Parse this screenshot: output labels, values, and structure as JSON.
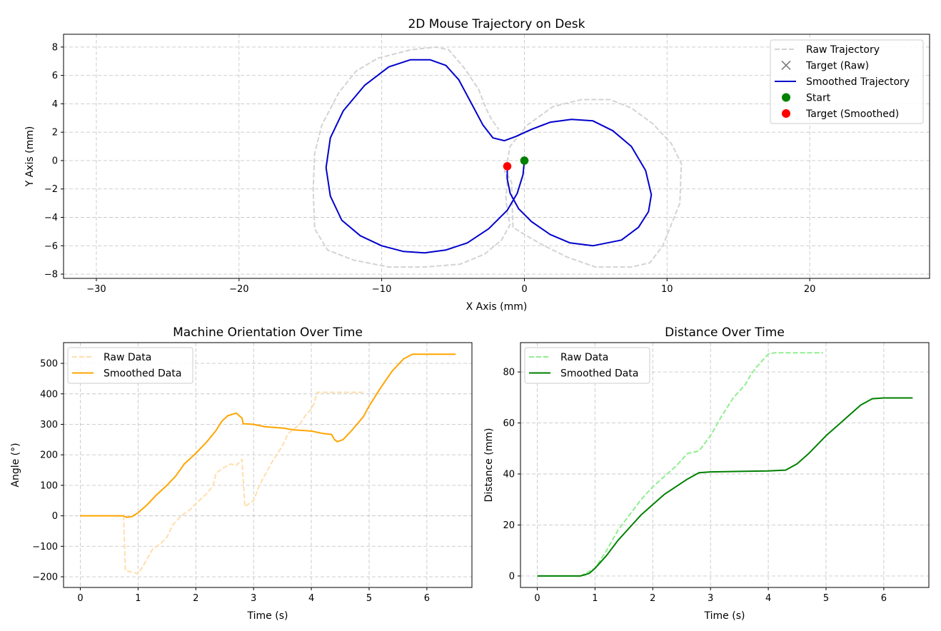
{
  "chart_data": [
    {
      "id": "trajectory",
      "type": "line",
      "title": "2D Mouse Trajectory on Desk",
      "xlabel": "X Axis (mm)",
      "ylabel": "Y Axis (mm)",
      "xlim": [
        -32.3,
        28.4
      ],
      "ylim": [
        -8.3,
        8.9
      ],
      "xticks": [
        -30,
        -20,
        -10,
        0,
        10,
        20
      ],
      "yticks": [
        -8,
        -6,
        -4,
        -2,
        0,
        2,
        4,
        6,
        8
      ],
      "grid": true,
      "legend_position": "top-right",
      "legend": [
        "Raw Trajectory",
        "Target (Raw)",
        "Smoothed Trajectory",
        "Start",
        "Target (Smoothed)"
      ],
      "series": [
        {
          "name": "Raw Trajectory",
          "color": "#d3d3d3",
          "style": "dashed",
          "points": [
            [
              -1.3,
              -0.6
            ],
            [
              -1.0,
              1.0
            ],
            [
              0.2,
              2.5
            ],
            [
              2.0,
              3.8
            ],
            [
              4.0,
              4.3
            ],
            [
              6.0,
              4.3
            ],
            [
              7.5,
              3.7
            ],
            [
              9.0,
              2.6
            ],
            [
              10.3,
              1.2
            ],
            [
              11.0,
              -0.2
            ],
            [
              10.9,
              -3.0
            ],
            [
              10.3,
              -4.5
            ],
            [
              9.7,
              -6.0
            ],
            [
              8.8,
              -7.2
            ],
            [
              7.5,
              -7.5
            ],
            [
              5.0,
              -7.5
            ],
            [
              3.0,
              -6.8
            ],
            [
              1.2,
              -5.9
            ],
            [
              0.0,
              -5.2
            ],
            [
              -0.8,
              -4.7
            ],
            [
              -0.9,
              -1.5
            ],
            [
              -1.2,
              -1.0
            ],
            [
              -1.3,
              -1.0
            ],
            [
              -1.4,
              -0.7
            ],
            [
              -1.3,
              -0.8
            ],
            [
              -1.2,
              -1.8
            ],
            [
              -1.3,
              -2.5
            ],
            [
              -1.2,
              -3.7
            ],
            [
              -1.0,
              -4.5
            ],
            [
              -1.6,
              -5.6
            ],
            [
              -2.8,
              -6.6
            ],
            [
              -4.5,
              -7.3
            ],
            [
              -7.0,
              -7.5
            ],
            [
              -9.5,
              -7.5
            ],
            [
              -12.0,
              -7.0
            ],
            [
              -13.8,
              -6.3
            ],
            [
              -14.7,
              -4.8
            ],
            [
              -14.8,
              -2.0
            ],
            [
              -14.7,
              0.5
            ],
            [
              -14.2,
              2.5
            ],
            [
              -13.0,
              4.8
            ],
            [
              -11.8,
              6.3
            ],
            [
              -10.3,
              7.2
            ],
            [
              -8.0,
              7.8
            ],
            [
              -6.2,
              8.0
            ],
            [
              -5.3,
              7.8
            ],
            [
              -4.2,
              6.5
            ],
            [
              -3.2,
              5.0
            ],
            [
              -2.7,
              3.7
            ],
            [
              -2.3,
              2.9
            ],
            [
              -1.8,
              2.2
            ]
          ]
        },
        {
          "name": "Smoothed Trajectory",
          "color": "#0000cd",
          "style": "solid",
          "points": [
            [
              0.0,
              0.0
            ],
            [
              -0.1,
              -1.0
            ],
            [
              -0.5,
              -2.3
            ],
            [
              -1.2,
              -3.5
            ],
            [
              -2.5,
              -4.8
            ],
            [
              -4.0,
              -5.8
            ],
            [
              -5.5,
              -6.3
            ],
            [
              -7.0,
              -6.5
            ],
            [
              -8.5,
              -6.4
            ],
            [
              -10.0,
              -6.0
            ],
            [
              -11.5,
              -5.3
            ],
            [
              -12.8,
              -4.2
            ],
            [
              -13.6,
              -2.5
            ],
            [
              -13.9,
              -0.5
            ],
            [
              -13.6,
              1.6
            ],
            [
              -12.7,
              3.5
            ],
            [
              -11.2,
              5.3
            ],
            [
              -9.5,
              6.6
            ],
            [
              -8.0,
              7.1
            ],
            [
              -6.6,
              7.1
            ],
            [
              -5.5,
              6.7
            ],
            [
              -4.6,
              5.7
            ],
            [
              -3.8,
              4.2
            ],
            [
              -2.9,
              2.5
            ],
            [
              -2.2,
              1.6
            ],
            [
              -1.4,
              1.4
            ],
            [
              -0.6,
              1.7
            ],
            [
              0.5,
              2.2
            ],
            [
              1.8,
              2.7
            ],
            [
              3.3,
              2.9
            ],
            [
              4.8,
              2.8
            ],
            [
              6.2,
              2.1
            ],
            [
              7.5,
              1.0
            ],
            [
              8.5,
              -0.7
            ],
            [
              8.9,
              -2.4
            ],
            [
              8.7,
              -3.6
            ],
            [
              8.0,
              -4.7
            ],
            [
              6.8,
              -5.6
            ],
            [
              4.8,
              -6.0
            ],
            [
              3.2,
              -5.8
            ],
            [
              1.8,
              -5.2
            ],
            [
              0.5,
              -4.3
            ],
            [
              -0.4,
              -3.4
            ],
            [
              -1.0,
              -2.3
            ],
            [
              -1.2,
              -1.3
            ],
            [
              -1.2,
              -0.4
            ]
          ]
        },
        {
          "name": "Target (Raw)",
          "color": "#808080",
          "marker": "x",
          "points": []
        },
        {
          "name": "Start",
          "color": "#008000",
          "marker": "circle",
          "points": [
            [
              0.0,
              0.0
            ]
          ]
        },
        {
          "name": "Target (Smoothed)",
          "color": "#ff0000",
          "marker": "circle",
          "points": [
            [
              -1.2,
              -0.4
            ]
          ]
        }
      ]
    },
    {
      "id": "orientation",
      "type": "line",
      "title": "Machine Orientation Over Time",
      "xlabel": "Time (s)",
      "ylabel": "Angle (°)",
      "xlim": [
        -0.29,
        6.78
      ],
      "ylim": [
        -235,
        568
      ],
      "xticks": [
        0,
        1,
        2,
        3,
        4,
        5,
        6
      ],
      "yticks": [
        -200,
        -100,
        0,
        100,
        200,
        300,
        400,
        500
      ],
      "grid": true,
      "legend_position": "top-left",
      "legend": [
        "Raw Data",
        "Smoothed Data"
      ],
      "series": [
        {
          "name": "Raw Data",
          "color": "#ffdead",
          "style": "dashed",
          "points": [
            [
              0,
              0
            ],
            [
              0.75,
              0
            ],
            [
              0.78,
              -180
            ],
            [
              0.9,
              -185
            ],
            [
              1.0,
              -190
            ],
            [
              1.1,
              -160
            ],
            [
              1.25,
              -110
            ],
            [
              1.4,
              -90
            ],
            [
              1.5,
              -70
            ],
            [
              1.6,
              -30
            ],
            [
              1.75,
              0
            ],
            [
              1.9,
              20
            ],
            [
              2.0,
              40
            ],
            [
              2.2,
              75
            ],
            [
              2.3,
              100
            ],
            [
              2.35,
              140
            ],
            [
              2.5,
              160
            ],
            [
              2.6,
              170
            ],
            [
              2.7,
              165
            ],
            [
              2.8,
              185
            ],
            [
              2.85,
              30
            ],
            [
              3.0,
              50
            ],
            [
              3.1,
              100
            ],
            [
              3.3,
              170
            ],
            [
              3.5,
              230
            ],
            [
              3.6,
              270
            ],
            [
              3.8,
              300
            ],
            [
              3.9,
              330
            ],
            [
              4.0,
              350
            ],
            [
              4.05,
              370
            ],
            [
              4.1,
              405
            ],
            [
              4.4,
              405
            ],
            [
              4.9,
              405
            ]
          ]
        },
        {
          "name": "Smoothed Data",
          "color": "#ffa500",
          "style": "solid",
          "points": [
            [
              0,
              0
            ],
            [
              0.75,
              0
            ],
            [
              0.8,
              -5
            ],
            [
              0.9,
              -2
            ],
            [
              1.0,
              10
            ],
            [
              1.15,
              35
            ],
            [
              1.3,
              65
            ],
            [
              1.5,
              100
            ],
            [
              1.65,
              130
            ],
            [
              1.8,
              170
            ],
            [
              2.0,
              205
            ],
            [
              2.2,
              245
            ],
            [
              2.35,
              280
            ],
            [
              2.45,
              310
            ],
            [
              2.55,
              328
            ],
            [
              2.7,
              337
            ],
            [
              2.8,
              320
            ],
            [
              2.82,
              302
            ],
            [
              3.0,
              300
            ],
            [
              3.2,
              292
            ],
            [
              3.5,
              288
            ],
            [
              3.7,
              282
            ],
            [
              4.0,
              278
            ],
            [
              4.2,
              270
            ],
            [
              4.35,
              267
            ],
            [
              4.4,
              250
            ],
            [
              4.45,
              243
            ],
            [
              4.55,
              250
            ],
            [
              4.7,
              280
            ],
            [
              4.9,
              325
            ],
            [
              5.0,
              360
            ],
            [
              5.2,
              420
            ],
            [
              5.4,
              475
            ],
            [
              5.6,
              515
            ],
            [
              5.75,
              530
            ],
            [
              6.0,
              530
            ],
            [
              6.5,
              530
            ]
          ]
        }
      ]
    },
    {
      "id": "distance",
      "type": "line",
      "title": "Distance Over Time",
      "xlabel": "Time (s)",
      "ylabel": "Distance (mm)",
      "xlim": [
        -0.29,
        6.78
      ],
      "ylim": [
        -4.5,
        91.5
      ],
      "xticks": [
        0,
        1,
        2,
        3,
        4,
        5,
        6
      ],
      "yticks": [
        0,
        20,
        40,
        60,
        80
      ],
      "grid": true,
      "legend_position": "top-left",
      "legend": [
        "Raw Data",
        "Smoothed Data"
      ],
      "series": [
        {
          "name": "Raw Data",
          "color": "#90ee90",
          "style": "dashed",
          "points": [
            [
              0,
              0
            ],
            [
              0.75,
              0
            ],
            [
              1.0,
              3
            ],
            [
              1.2,
              10
            ],
            [
              1.4,
              18
            ],
            [
              1.6,
              24
            ],
            [
              1.8,
              30
            ],
            [
              2.0,
              35
            ],
            [
              2.2,
              39
            ],
            [
              2.4,
              43
            ],
            [
              2.6,
              48
            ],
            [
              2.8,
              49
            ],
            [
              3.0,
              55
            ],
            [
              3.2,
              63
            ],
            [
              3.4,
              70
            ],
            [
              3.6,
              75
            ],
            [
              3.7,
              79
            ],
            [
              3.8,
              82
            ],
            [
              4.0,
              87
            ],
            [
              4.1,
              87.5
            ],
            [
              4.5,
              87.5
            ],
            [
              4.95,
              87.5
            ]
          ]
        },
        {
          "name": "Smoothed Data",
          "color": "#008000",
          "style": "solid",
          "points": [
            [
              0,
              0
            ],
            [
              0.75,
              0
            ],
            [
              0.9,
              1
            ],
            [
              1.0,
              3
            ],
            [
              1.2,
              8
            ],
            [
              1.4,
              14
            ],
            [
              1.6,
              19
            ],
            [
              1.8,
              24
            ],
            [
              2.0,
              28
            ],
            [
              2.2,
              32
            ],
            [
              2.4,
              35
            ],
            [
              2.6,
              38
            ],
            [
              2.8,
              40.5
            ],
            [
              3.0,
              40.8
            ],
            [
              3.5,
              41
            ],
            [
              4.0,
              41.2
            ],
            [
              4.3,
              41.5
            ],
            [
              4.5,
              44
            ],
            [
              4.7,
              48
            ],
            [
              5.0,
              55
            ],
            [
              5.2,
              59
            ],
            [
              5.4,
              63
            ],
            [
              5.6,
              67
            ],
            [
              5.8,
              69.5
            ],
            [
              6.0,
              69.8
            ],
            [
              6.5,
              69.8
            ]
          ]
        }
      ]
    }
  ]
}
